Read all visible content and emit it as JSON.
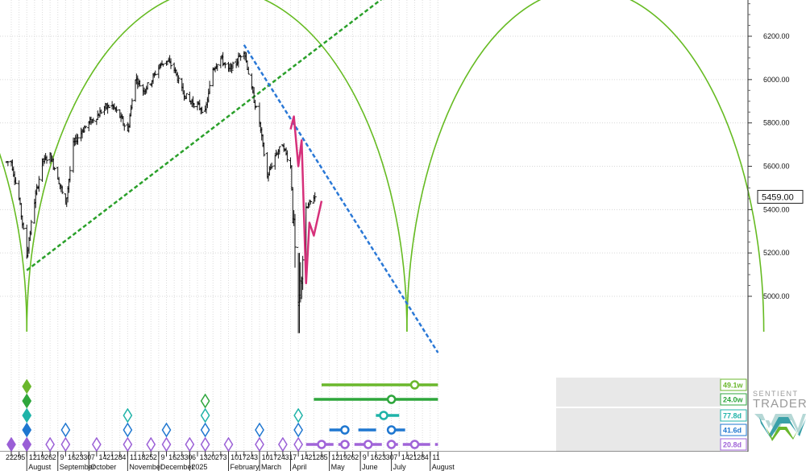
{
  "chart_data": {
    "type": "bar",
    "subtype": "ohlc",
    "x_axis": {
      "start": "2024-07-22",
      "end": "2025-08-11",
      "unit": "date"
    },
    "y_axis": {
      "min": 4800,
      "max": 6420,
      "ticks": [
        5000,
        5200,
        5400,
        5600,
        5800,
        6000,
        6200
      ],
      "tick_labels": [
        "5000.00",
        "5200.00",
        "5400.00",
        "5600.00",
        "5800.00",
        "6000.00",
        "6200.00"
      ],
      "position": "right"
    },
    "last_price": 5459.0,
    "last_price_label": "5459.00",
    "day_labels": [
      "22",
      "29",
      "5",
      "12",
      "19",
      "26",
      "2",
      "9",
      "16",
      "23",
      "30",
      "7",
      "14",
      "21",
      "28",
      "4",
      "11",
      "18",
      "25",
      "2",
      "9",
      "16",
      "23",
      "30",
      "6",
      "13",
      "20",
      "27",
      "3",
      "10",
      "17",
      "24",
      "3",
      "10",
      "17",
      "24",
      "31",
      "7",
      "14",
      "21",
      "28",
      "5",
      "12",
      "19",
      "26",
      "2",
      "9",
      "16",
      "23",
      "30",
      "7",
      "14",
      "21",
      "28",
      "4",
      "11"
    ],
    "month_labels": [
      {
        "date": "2024-08-05",
        "label": "August"
      },
      {
        "date": "2024-09-02",
        "label": "September"
      },
      {
        "date": "2024-09-30",
        "label": "October"
      },
      {
        "date": "2024-11-04",
        "label": "November"
      },
      {
        "date": "2024-12-02",
        "label": "December"
      },
      {
        "date": "2024-12-30",
        "label": "2025"
      },
      {
        "date": "2025-02-03",
        "label": "February"
      },
      {
        "date": "2025-03-03",
        "label": "March"
      },
      {
        "date": "2025-03-31",
        "label": "April"
      },
      {
        "date": "2025-05-05",
        "label": "May"
      },
      {
        "date": "2025-06-02",
        "label": "June"
      },
      {
        "date": "2025-06-30",
        "label": "July"
      },
      {
        "date": "2025-08-04",
        "label": "August"
      }
    ],
    "price_path": [
      {
        "date": "2024-07-22",
        "value": 5620
      },
      {
        "date": "2024-07-29",
        "value": 5450
      },
      {
        "date": "2024-08-05",
        "value": 5190
      },
      {
        "date": "2024-08-12",
        "value": 5440
      },
      {
        "date": "2024-08-19",
        "value": 5620
      },
      {
        "date": "2024-08-26",
        "value": 5650
      },
      {
        "date": "2024-09-02",
        "value": 5550
      },
      {
        "date": "2024-09-09",
        "value": 5420
      },
      {
        "date": "2024-09-16",
        "value": 5700
      },
      {
        "date": "2024-09-23",
        "value": 5760
      },
      {
        "date": "2024-09-30",
        "value": 5800
      },
      {
        "date": "2024-10-07",
        "value": 5830
      },
      {
        "date": "2024-10-14",
        "value": 5870
      },
      {
        "date": "2024-10-21",
        "value": 5880
      },
      {
        "date": "2024-10-28",
        "value": 5830
      },
      {
        "date": "2024-11-04",
        "value": 5760
      },
      {
        "date": "2024-11-11",
        "value": 6010
      },
      {
        "date": "2024-11-18",
        "value": 5950
      },
      {
        "date": "2024-11-25",
        "value": 5990
      },
      {
        "date": "2024-12-02",
        "value": 6060
      },
      {
        "date": "2024-12-09",
        "value": 6090
      },
      {
        "date": "2024-12-16",
        "value": 6050
      },
      {
        "date": "2024-12-23",
        "value": 5950
      },
      {
        "date": "2024-12-30",
        "value": 5900
      },
      {
        "date": "2025-01-06",
        "value": 5880
      },
      {
        "date": "2025-01-13",
        "value": 5850
      },
      {
        "date": "2025-01-20",
        "value": 6050
      },
      {
        "date": "2025-01-27",
        "value": 6100
      },
      {
        "date": "2025-02-03",
        "value": 6040
      },
      {
        "date": "2025-02-10",
        "value": 6080
      },
      {
        "date": "2025-02-17",
        "value": 6140
      },
      {
        "date": "2025-02-24",
        "value": 5950
      },
      {
        "date": "2025-03-03",
        "value": 5800
      },
      {
        "date": "2025-03-10",
        "value": 5550
      },
      {
        "date": "2025-03-17",
        "value": 5650
      },
      {
        "date": "2025-03-24",
        "value": 5700
      },
      {
        "date": "2025-03-31",
        "value": 5600
      },
      {
        "date": "2025-04-07",
        "value": 4900
      },
      {
        "date": "2025-04-14",
        "value": 5400
      },
      {
        "date": "2025-04-21",
        "value": 5459
      }
    ],
    "forecast_path": [
      {
        "date": "2025-03-31",
        "value": 5770
      },
      {
        "date": "2025-04-03",
        "value": 5830
      },
      {
        "date": "2025-04-07",
        "value": 5600
      },
      {
        "date": "2025-04-10",
        "value": 5720
      },
      {
        "date": "2025-04-14",
        "value": 5060
      },
      {
        "date": "2025-04-17",
        "value": 5340
      },
      {
        "date": "2025-04-21",
        "value": 5280
      },
      {
        "date": "2025-04-28",
        "value": 5440
      }
    ],
    "cycle_arcs": [
      {
        "color": "#66bb22",
        "troughs": [
          "2024-08-05",
          "2025-07-14"
        ],
        "peak_value": 6420
      },
      {
        "color": "#66bb22",
        "troughs": [
          "2025-07-14",
          "2026-06-01"
        ],
        "peak_value": 6420
      },
      {
        "color": "#66bb22",
        "troughs": [
          "2023-09-01",
          "2024-08-05"
        ],
        "peak_value": 6420
      }
    ],
    "trend_lines": [
      {
        "name": "support",
        "color": "#2aa02a",
        "points": [
          {
            "date": "2024-08-05",
            "value": 5120
          },
          {
            "date": "2025-08-11",
            "value": 6570
          }
        ]
      },
      {
        "name": "resistance",
        "color": "#2a78d6",
        "points": [
          {
            "date": "2025-02-17",
            "value": 6160
          },
          {
            "date": "2025-08-11",
            "value": 4740
          }
        ]
      }
    ],
    "cycle_legend": [
      {
        "label": "49.1w",
        "color": "#6ab72c",
        "start": "2025-04-28",
        "end": "2025-08-11",
        "marker": "2025-07-21",
        "shade_start": "2025-04-28"
      },
      {
        "label": "24.0w",
        "color": "#2ea63c",
        "start": "2025-04-21",
        "end": "2025-08-11",
        "marker": "2025-06-30",
        "shade_start": "2025-07-21"
      },
      {
        "label": "77.8d",
        "color": "#1fb3a8",
        "start": "2025-06-16",
        "end": "2025-07-07",
        "marker": "2025-06-23",
        "shade_start": "2025-07-07"
      },
      {
        "label": "41.6d",
        "color": "#1f77d0",
        "start": "2025-05-05",
        "end": "2025-07-14",
        "marker": "2025-05-19",
        "shade_start": "2025-06-16"
      },
      {
        "label": "20.8d",
        "color": "#a064d8",
        "start": "2025-04-14",
        "end": "2025-08-11",
        "marker": "2025-04-28",
        "shade_start": "2025-04-14"
      }
    ],
    "cycle_diamonds": [
      {
        "date": "2024-07-22",
        "color": "#9a5fd6",
        "filled": true,
        "level": 0
      },
      {
        "date": "2024-08-05",
        "color": "#9a5fd6",
        "filled": true,
        "level": 0
      },
      {
        "date": "2024-08-05",
        "color": "#1f77d0",
        "filled": true,
        "level": 1
      },
      {
        "date": "2024-08-05",
        "color": "#1fb3a8",
        "filled": true,
        "level": 2
      },
      {
        "date": "2024-08-05",
        "color": "#2ea63c",
        "filled": true,
        "level": 3
      },
      {
        "date": "2024-08-05",
        "color": "#6ab72c",
        "filled": true,
        "level": 4
      },
      {
        "date": "2024-08-26",
        "color": "#9a5fd6",
        "filled": false,
        "level": 0
      },
      {
        "date": "2024-09-09",
        "color": "#9a5fd6",
        "filled": false,
        "level": 0
      },
      {
        "date": "2024-09-09",
        "color": "#1f77d0",
        "filled": false,
        "level": 1
      },
      {
        "date": "2024-10-07",
        "color": "#9a5fd6",
        "filled": false,
        "level": 0
      },
      {
        "date": "2024-11-04",
        "color": "#9a5fd6",
        "filled": false,
        "level": 0
      },
      {
        "date": "2024-11-04",
        "color": "#1f77d0",
        "filled": false,
        "level": 1
      },
      {
        "date": "2024-11-04",
        "color": "#1fb3a8",
        "filled": false,
        "level": 2
      },
      {
        "date": "2024-11-25",
        "color": "#9a5fd6",
        "filled": false,
        "level": 0
      },
      {
        "date": "2024-12-09",
        "color": "#9a5fd6",
        "filled": false,
        "level": 0
      },
      {
        "date": "2024-12-09",
        "color": "#1f77d0",
        "filled": false,
        "level": 1
      },
      {
        "date": "2024-12-30",
        "color": "#9a5fd6",
        "filled": false,
        "level": 0
      },
      {
        "date": "2025-01-13",
        "color": "#9a5fd6",
        "filled": false,
        "level": 0
      },
      {
        "date": "2025-01-13",
        "color": "#1f77d0",
        "filled": false,
        "level": 1
      },
      {
        "date": "2025-01-13",
        "color": "#1fb3a8",
        "filled": false,
        "level": 2
      },
      {
        "date": "2025-01-13",
        "color": "#2ea63c",
        "filled": false,
        "level": 3
      },
      {
        "date": "2025-02-03",
        "color": "#9a5fd6",
        "filled": false,
        "level": 0
      },
      {
        "date": "2025-03-03",
        "color": "#9a5fd6",
        "filled": false,
        "level": 0
      },
      {
        "date": "2025-03-03",
        "color": "#1f77d0",
        "filled": false,
        "level": 1
      },
      {
        "date": "2025-03-24",
        "color": "#9a5fd6",
        "filled": false,
        "level": 0
      },
      {
        "date": "2025-04-07",
        "color": "#9a5fd6",
        "filled": false,
        "level": 0
      },
      {
        "date": "2025-04-07",
        "color": "#1f77d0",
        "filled": false,
        "level": 1
      },
      {
        "date": "2025-04-07",
        "color": "#1fb3a8",
        "filled": false,
        "level": 2
      }
    ],
    "brand": {
      "line1": "SENTIENT",
      "line2": "TRADER"
    }
  }
}
